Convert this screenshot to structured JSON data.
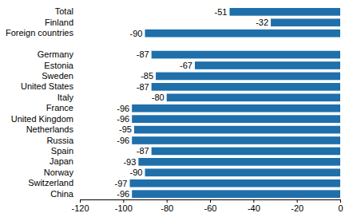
{
  "chart_data": {
    "type": "bar",
    "orientation": "horizontal",
    "categories": [
      "Total",
      "Finland",
      "Foreign countries",
      null,
      "Germany",
      "Estonia",
      "Sweden",
      "United States",
      "Italy",
      "France",
      "United Kingdom",
      "Netherlands",
      "Russia",
      "Spain",
      "Japan",
      "Norway",
      "Switzerland",
      "China"
    ],
    "values": [
      -51,
      -32,
      -90,
      null,
      -87,
      -67,
      -85,
      -87,
      -80,
      -96,
      -96,
      -95,
      -96,
      -87,
      -93,
      -90,
      -97,
      -96
    ],
    "color": "#1f6fab",
    "xlim": [
      -120,
      0
    ],
    "xticks": [
      -120,
      -100,
      -80,
      -60,
      -40,
      -20,
      0
    ],
    "grid": false,
    "data_labels": true
  }
}
